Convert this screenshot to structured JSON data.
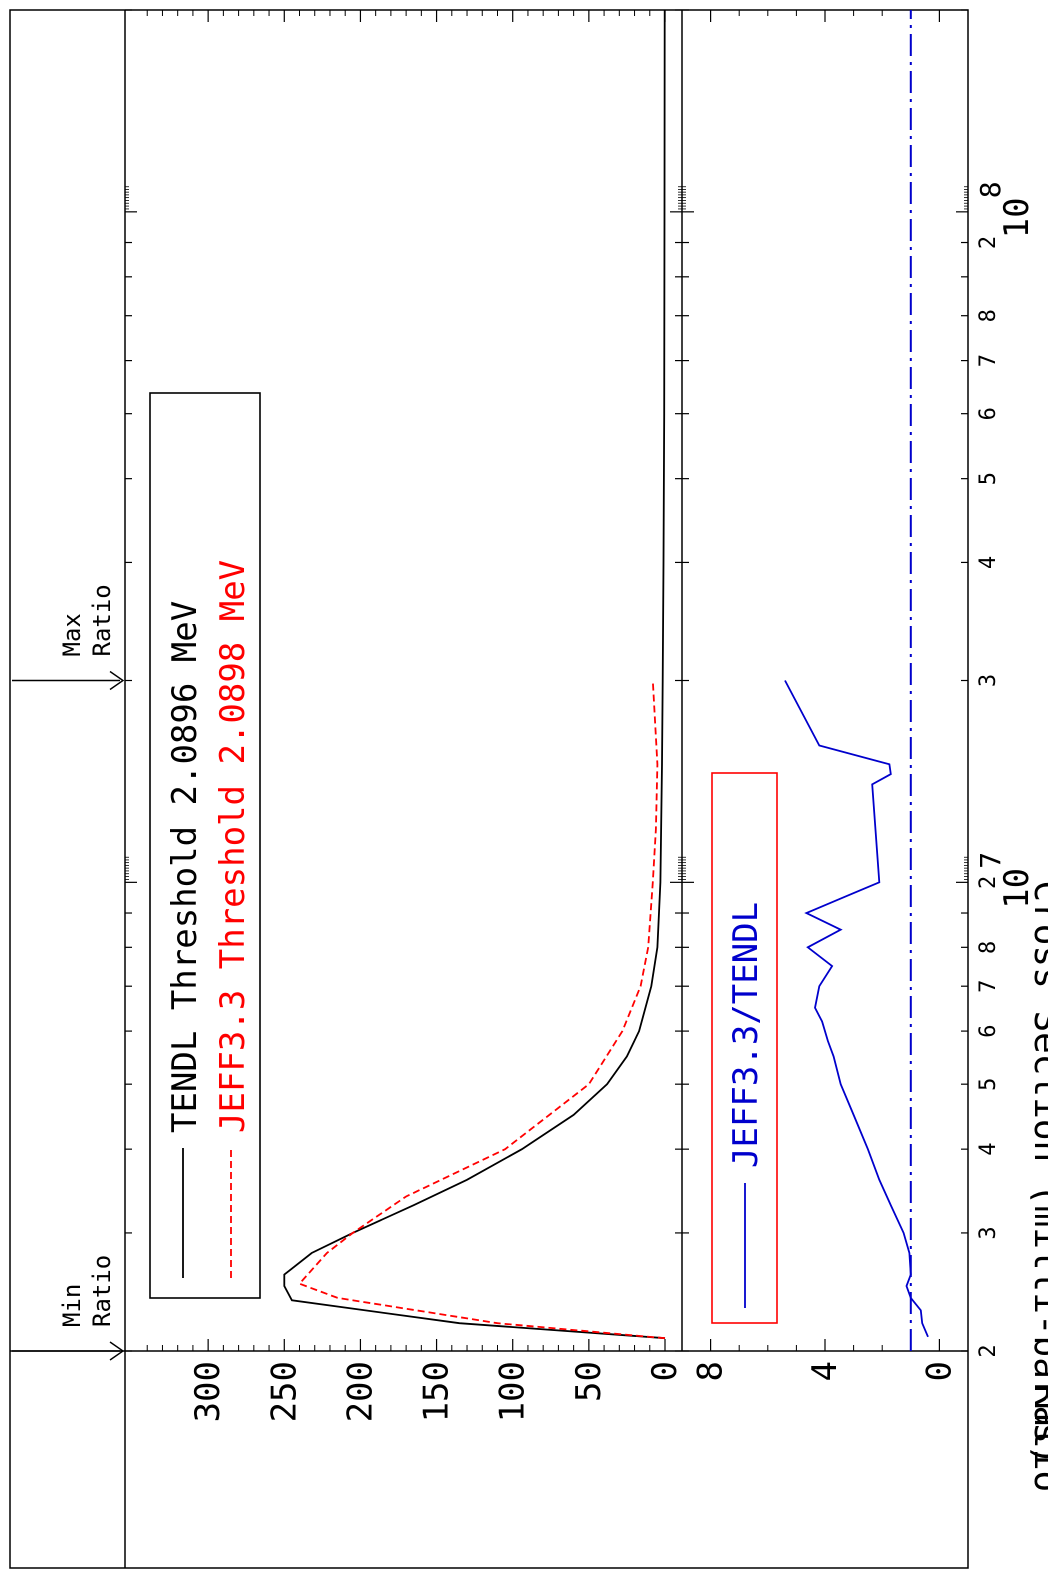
{
  "chart_data": [
    {
      "type": "line",
      "panel": "cross-section",
      "ylabel": "Cross Section (milli-barns)",
      "xscale": "log",
      "xlim": [
        2000000,
        200000000
      ],
      "ylim": [
        0,
        350
      ],
      "yticks": [
        0,
        50,
        100,
        150,
        200,
        250,
        300
      ],
      "xtick_labels": [
        "2",
        "3",
        "4",
        "5",
        "6",
        "7",
        "8",
        "10",
        "2",
        "3",
        "4",
        "5",
        "6",
        "7",
        "8",
        "10",
        "2"
      ],
      "xtick_exponents": [
        "7",
        "8"
      ],
      "legend": {
        "placement": "upper-left",
        "border_color": "#000000"
      },
      "series": [
        {
          "name": "TENDL Threshold 2.0896 MeV",
          "color": "#000000",
          "dash": "solid",
          "x": [
            2090000,
            2200000,
            2380000,
            2500000,
            2600000,
            2800000,
            3000000,
            3300000,
            3600000,
            4000000,
            4500000,
            5000000,
            5500000,
            6000000,
            7000000,
            8000000,
            10000000,
            15000000,
            20000000,
            30000000,
            50000000,
            100000000,
            200000000
          ],
          "y": [
            0,
            135,
            245,
            250,
            250,
            232,
            205,
            165,
            130,
            94,
            60,
            38,
            25,
            17,
            9,
            5,
            3,
            2,
            1.5,
            1,
            0.5,
            0.3,
            0.2
          ]
        },
        {
          "name": "JEFF3.3 Threshold 2.0898 MeV",
          "color": "#ff0000",
          "dash": "dashed",
          "x": [
            2090000,
            2200000,
            2400000,
            2520000,
            2800000,
            3000000,
            3400000,
            4000000,
            5000000,
            6000000,
            7000000,
            8000000,
            10000000,
            12000000,
            15000000,
            20000000
          ],
          "y": [
            0,
            110,
            215,
            240,
            222,
            205,
            170,
            105,
            50,
            28,
            16,
            11,
            8,
            6,
            5,
            8
          ]
        }
      ]
    },
    {
      "type": "line",
      "panel": "ratio",
      "ylabel": "Ratio",
      "xscale": "log",
      "xlim": [
        2000000,
        200000000
      ],
      "ylim": [
        -1,
        9
      ],
      "yticks": [
        0,
        4,
        8
      ],
      "legend": {
        "placement": "upper-left",
        "border_color": "#ff0000"
      },
      "annotations": [
        {
          "text": "Min Ratio",
          "x": 2000000
        },
        {
          "text": "Max Ratio",
          "x": 20000000
        }
      ],
      "reference_line": {
        "y": 1,
        "color": "#0000cc",
        "dash": "dash-dot"
      },
      "series": [
        {
          "name": "JEFF3.3/TENDL",
          "color": "#0000cc",
          "dash": "solid",
          "x": [
            2100000,
            2200000,
            2300000,
            2400000,
            2500000,
            2600000,
            2800000,
            3000000,
            3300000,
            3600000,
            4000000,
            4500000,
            5000000,
            5500000,
            5800000,
            6200000,
            6500000,
            7000000,
            7500000,
            8000000,
            8500000,
            9000000,
            9500000,
            10000000,
            14000000,
            14500000,
            15000000,
            16000000,
            20000000
          ],
          "y": [
            0.4,
            0.6,
            0.65,
            1.0,
            1.15,
            1.0,
            1.05,
            1.25,
            1.7,
            2.1,
            2.5,
            3.0,
            3.45,
            3.7,
            3.9,
            4.1,
            4.35,
            4.2,
            3.75,
            4.6,
            3.45,
            4.65,
            3.35,
            2.1,
            2.35,
            1.7,
            1.75,
            4.2,
            5.4
          ]
        }
      ]
    }
  ]
}
